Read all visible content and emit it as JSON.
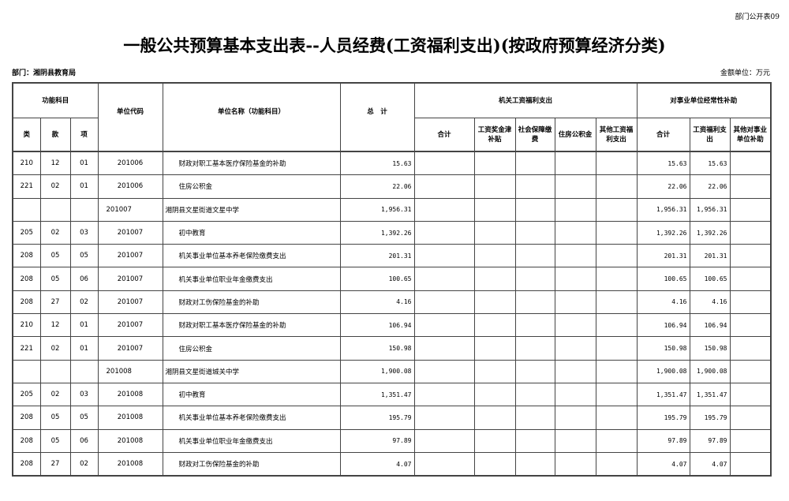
{
  "form_code": "部门公开表09",
  "title": "一般公共预算基本支出表--人员经费(工资福利支出)(按政府预算经济分类)",
  "department": "部门：湘阴县教育局",
  "unit": "金额单位：万元",
  "headers": {
    "func": "功能科目",
    "lei": "类",
    "kuan": "款",
    "xiang": "项",
    "code": "单位代码",
    "name": "单位名称（功能科目）",
    "total": "总　计",
    "jg": "机关工资福利支出",
    "jg_sum": "合计",
    "jg_wage": "工资奖金津补贴",
    "jg_social": "社会保障缴费",
    "jg_housing": "住房公积金",
    "jg_other": "其他工资福利支出",
    "sy": "对事业单位经常性补助",
    "sy_sum": "合计",
    "sy_wage": "工资福利支出",
    "sy_other": "其他对事业单位补助"
  },
  "rows": [
    {
      "lei": "210",
      "kuan": "12",
      "xiang": "01",
      "code": "201006",
      "name": "财政对职工基本医疗保险基金的补助",
      "total": "15.63",
      "sy_sum": "15.63",
      "sy_wage": "15.63"
    },
    {
      "lei": "221",
      "kuan": "02",
      "xiang": "01",
      "code": "201006",
      "name": "住房公积金",
      "total": "22.06",
      "sy_sum": "22.06",
      "sy_wage": "22.06"
    },
    {
      "lei": "",
      "kuan": "",
      "xiang": "",
      "code": "201007",
      "name": "湘阴县文星街道文星中学",
      "total": "1,956.31",
      "sy_sum": "1,956.31",
      "sy_wage": "1,956.31",
      "unit_row": true
    },
    {
      "lei": "205",
      "kuan": "02",
      "xiang": "03",
      "code": "201007",
      "name": "初中教育",
      "total": "1,392.26",
      "sy_sum": "1,392.26",
      "sy_wage": "1,392.26"
    },
    {
      "lei": "208",
      "kuan": "05",
      "xiang": "05",
      "code": "201007",
      "name": "机关事业单位基本养老保险缴费支出",
      "total": "201.31",
      "sy_sum": "201.31",
      "sy_wage": "201.31"
    },
    {
      "lei": "208",
      "kuan": "05",
      "xiang": "06",
      "code": "201007",
      "name": "机关事业单位职业年金缴费支出",
      "total": "100.65",
      "sy_sum": "100.65",
      "sy_wage": "100.65"
    },
    {
      "lei": "208",
      "kuan": "27",
      "xiang": "02",
      "code": "201007",
      "name": "财政对工伤保险基金的补助",
      "total": "4.16",
      "sy_sum": "4.16",
      "sy_wage": "4.16"
    },
    {
      "lei": "210",
      "kuan": "12",
      "xiang": "01",
      "code": "201007",
      "name": "财政对职工基本医疗保险基金的补助",
      "total": "106.94",
      "sy_sum": "106.94",
      "sy_wage": "106.94"
    },
    {
      "lei": "221",
      "kuan": "02",
      "xiang": "01",
      "code": "201007",
      "name": "住房公积金",
      "total": "150.98",
      "sy_sum": "150.98",
      "sy_wage": "150.98"
    },
    {
      "lei": "",
      "kuan": "",
      "xiang": "",
      "code": "201008",
      "name": "湘阴县文星街道城关中学",
      "total": "1,900.08",
      "sy_sum": "1,900.08",
      "sy_wage": "1,900.08",
      "unit_row": true
    },
    {
      "lei": "205",
      "kuan": "02",
      "xiang": "03",
      "code": "201008",
      "name": "初中教育",
      "total": "1,351.47",
      "sy_sum": "1,351.47",
      "sy_wage": "1,351.47"
    },
    {
      "lei": "208",
      "kuan": "05",
      "xiang": "05",
      "code": "201008",
      "name": "机关事业单位基本养老保险缴费支出",
      "total": "195.79",
      "sy_sum": "195.79",
      "sy_wage": "195.79"
    },
    {
      "lei": "208",
      "kuan": "05",
      "xiang": "06",
      "code": "201008",
      "name": "机关事业单位职业年金缴费支出",
      "total": "97.89",
      "sy_sum": "97.89",
      "sy_wage": "97.89"
    },
    {
      "lei": "208",
      "kuan": "27",
      "xiang": "02",
      "code": "201008",
      "name": "财政对工伤保险基金的补助",
      "total": "4.07",
      "sy_sum": "4.07",
      "sy_wage": "4.07"
    }
  ]
}
